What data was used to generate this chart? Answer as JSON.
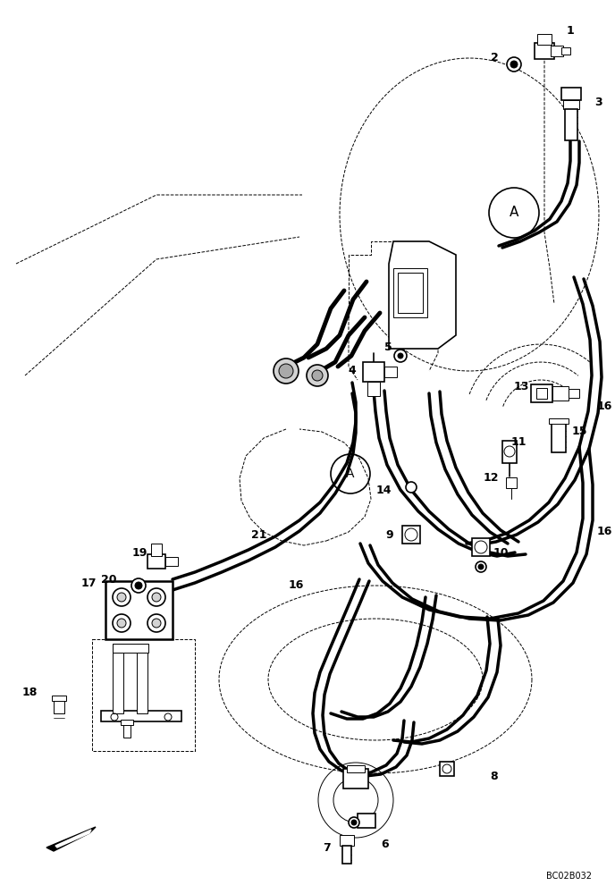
{
  "bg_color": "#ffffff",
  "line_color": "#000000",
  "fig_width": 6.88,
  "fig_height": 10.0,
  "watermark": "BC02B032",
  "dpi": 100
}
